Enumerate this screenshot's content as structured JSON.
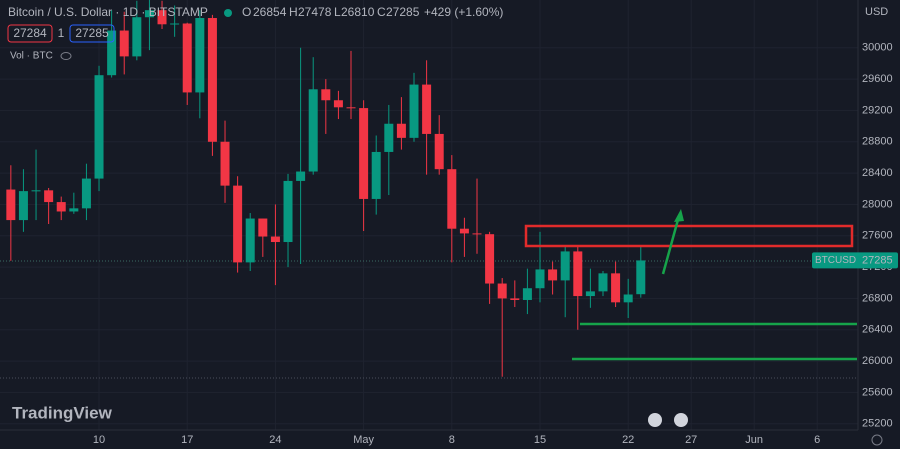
{
  "header": {
    "symbol": "Bitcoin / U.S. Dollar · 1D · BITSTAMP",
    "o_label": "O",
    "o": "26854",
    "h_label": "H",
    "h": "27478",
    "l_label": "L",
    "l": "26810",
    "c_label": "C",
    "c": "27285",
    "change": "+429 (+1.60%)",
    "sell": "27284",
    "spread": "1",
    "buy": "27285",
    "volume": "Vol · BTC"
  },
  "currency": "USD",
  "brand": "TradingView",
  "price_label": {
    "symbol": "BTCUSD",
    "price": "27285"
  },
  "chart_data": {
    "type": "candlestick",
    "xlim": [
      2.14,
      70.24
    ],
    "xticks": [
      {
        "value": 10,
        "label": "10"
      },
      {
        "value": 17,
        "label": "17"
      },
      {
        "value": 24,
        "label": "24"
      },
      {
        "value": 31,
        "label": "May"
      },
      {
        "value": 38,
        "label": "8"
      },
      {
        "value": 45,
        "label": "15"
      },
      {
        "value": 52,
        "label": "22"
      },
      {
        "value": 57,
        "label": "27"
      },
      {
        "value": 62,
        "label": "Jun"
      },
      {
        "value": 67,
        "label": "6"
      }
    ],
    "ylim": [
      25120,
      30610
    ],
    "yticks": [
      25200,
      25600,
      26000,
      26400,
      26800,
      27200,
      27600,
      28000,
      28400,
      28800,
      29200,
      29600,
      30000
    ],
    "up_color": "#089981",
    "down_color": "#f23645",
    "grid": true,
    "x": [
      3,
      4,
      5,
      6,
      7,
      8,
      9,
      10,
      11,
      12,
      13,
      14,
      15,
      16,
      17,
      18,
      19,
      20,
      21,
      22,
      23,
      24,
      25,
      26,
      27,
      28,
      29,
      30,
      31,
      32,
      33,
      34,
      35,
      36,
      37,
      38,
      39,
      40,
      41,
      42,
      43,
      44,
      45,
      46,
      47,
      48,
      49,
      50,
      51,
      52,
      53
    ],
    "open": [
      28190,
      27800,
      28170,
      28180,
      28030,
      27910,
      27950,
      28330,
      29650,
      30220,
      29890,
      30390,
      30480,
      30300,
      30310,
      29430,
      30380,
      28800,
      28240,
      27260,
      27820,
      27590,
      27520,
      28300,
      28420,
      29470,
      29330,
      29240,
      29230,
      28070,
      28670,
      29030,
      28850,
      29530,
      28900,
      28450,
      27690,
      27630,
      27620,
      26990,
      26800,
      26780,
      26930,
      27170,
      27030,
      27400,
      26830,
      26890,
      27120,
      26750,
      26854
    ],
    "high": [
      28500,
      28450,
      28700,
      28210,
      28100,
      28150,
      28520,
      29770,
      30480,
      30460,
      30600,
      31000,
      30600,
      30540,
      30320,
      30480,
      30420,
      29070,
      28360,
      27890,
      27820,
      28000,
      28390,
      30000,
      29880,
      29600,
      29450,
      29960,
      29330,
      28880,
      29270,
      29370,
      29680,
      29840,
      29140,
      28630,
      27830,
      28330,
      27650,
      27060,
      27030,
      27180,
      27650,
      27270,
      27470,
      27480,
      27180,
      27150,
      27270,
      27050,
      27478
    ],
    "low": [
      27280,
      27650,
      27800,
      27750,
      27800,
      27880,
      27800,
      28170,
      29620,
      29660,
      29840,
      29970,
      30240,
      30140,
      29270,
      29100,
      28620,
      28020,
      27130,
      27150,
      27330,
      26970,
      27200,
      27240,
      28380,
      28900,
      29090,
      29090,
      27660,
      27870,
      28120,
      28700,
      28800,
      28380,
      28380,
      27260,
      27330,
      27370,
      26730,
      25800,
      26690,
      26600,
      26750,
      26850,
      26560,
      26400,
      26680,
      26830,
      26690,
      26550,
      26810
    ],
    "close": [
      27800,
      28170,
      28180,
      28030,
      27910,
      27950,
      28330,
      29650,
      30220,
      29890,
      30390,
      30480,
      30300,
      30310,
      29430,
      30380,
      28800,
      28240,
      27260,
      27820,
      27590,
      27520,
      28300,
      28420,
      29470,
      29330,
      29240,
      29230,
      28070,
      28670,
      29030,
      28850,
      29530,
      28900,
      28450,
      27690,
      27630,
      27620,
      26990,
      26800,
      26780,
      26930,
      27170,
      27030,
      27400,
      26830,
      26890,
      27120,
      26750,
      26850,
      27285
    ]
  }
}
